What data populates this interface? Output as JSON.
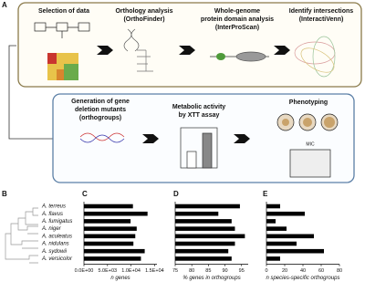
{
  "panels": [
    "A",
    "B",
    "C",
    "D",
    "E"
  ],
  "workflow": {
    "top": [
      {
        "title": "Selection of data"
      },
      {
        "title": "Orthology analysis",
        "tool": "(OrthoFinder)"
      },
      {
        "title": "Whole-genome",
        "title2": "protein domain analysis",
        "tool": "(InterProScan)"
      },
      {
        "title": "Identify intersections",
        "tool": "(InteractiVenn)"
      }
    ],
    "bottom": [
      {
        "title": "Generation of gene",
        "title2": "deletion mutants",
        "tool": "(orthogroups)"
      },
      {
        "title": "Metabolic activity",
        "title2": "by XTT assay"
      },
      {
        "title": "Phenotyping",
        "note": "MIC"
      }
    ]
  },
  "chart_data": [
    {
      "type": "bar",
      "categories": [
        "A. terreus",
        "A. flavus",
        "A. fumigatus",
        "A. niger",
        "A. aculeatus",
        "A. nidulans",
        "A. sydowii",
        "A. versicolor"
      ],
      "values": [
        10400,
        13500,
        9900,
        11200,
        10900,
        10500,
        12900,
        12100
      ],
      "color": "#000000",
      "x_label": "n genes",
      "xlim": [
        0,
        15500
      ],
      "xticks": [
        {
          "value": 0,
          "label": "0.0E+00"
        },
        {
          "value": 5000,
          "label": "5.0E+03"
        },
        {
          "value": 10000,
          "label": "1.0E+04"
        },
        {
          "value": 15000,
          "label": "1.5E+04"
        }
      ]
    },
    {
      "type": "bar",
      "values": [
        94.5,
        88,
        92,
        93,
        96,
        93,
        91,
        92
      ],
      "color": "#000000",
      "x_label": "% genes in orthogroups",
      "xlim": [
        75,
        97
      ],
      "xticks": [
        75,
        80,
        85,
        90,
        95
      ]
    },
    {
      "type": "bar",
      "values": [
        15,
        42,
        10,
        22,
        52,
        33,
        63,
        15
      ],
      "color": "#000000",
      "x_label": "n species-specific orthogroups",
      "xlim": [
        0,
        80
      ],
      "xticks": [
        0,
        20,
        40,
        60,
        80
      ]
    }
  ]
}
